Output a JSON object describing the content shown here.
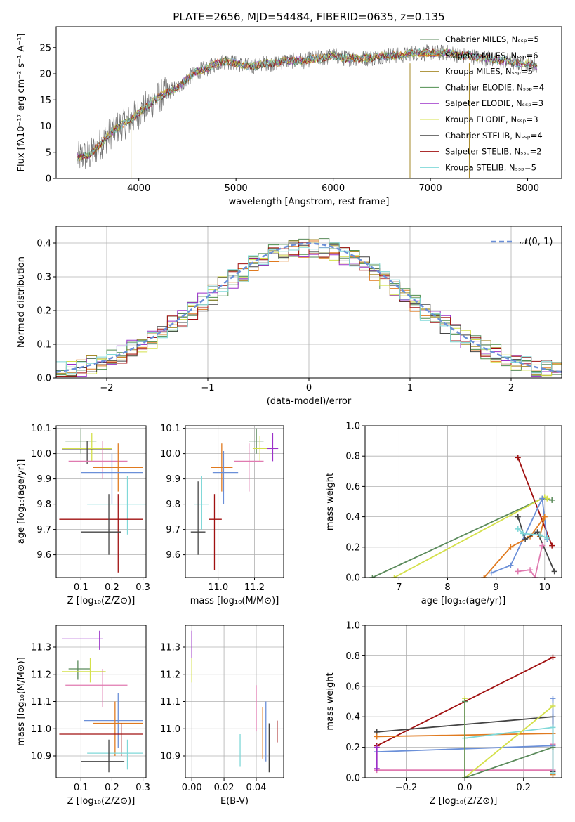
{
  "figure": {
    "title": "PLATE=2656, MJD=54484, FIBERID=0635, z=0.135"
  },
  "chart_data": [
    {
      "id": "spectrum",
      "type": "line",
      "xlabel": "wavelength [Angstrom, rest frame]",
      "ylabel": "Flux [fλ10⁻¹⁷ erg cm⁻² s⁻¹ A⁻¹]",
      "xlim": [
        3150,
        8350
      ],
      "ylim": [
        0,
        29
      ],
      "xticks": [
        4000,
        5000,
        6000,
        7000,
        8000
      ],
      "yticks": [
        0,
        5,
        10,
        15,
        20,
        25
      ],
      "grid": false,
      "legend": "upper right",
      "observed_flux": {
        "x": [
          3370,
          3500,
          3600,
          3700,
          3800,
          3900,
          4000,
          4100,
          4200,
          4300,
          4400,
          4500,
          4600,
          4700,
          4800,
          4900,
          5000,
          5100,
          5200,
          5300,
          5400,
          5500,
          5600,
          5700,
          5800,
          5900,
          6000,
          6100,
          6200,
          6300,
          6400,
          6500,
          6600,
          6700,
          6800,
          6900,
          7000,
          7100,
          7200,
          7300,
          7400,
          7500,
          7600,
          7700,
          7800,
          7900,
          8000,
          8100
        ],
        "y": [
          4.0,
          4.5,
          6.5,
          8.5,
          10.0,
          11.0,
          12.5,
          14.0,
          15.5,
          16.5,
          17.5,
          19.0,
          20.5,
          21.0,
          22.0,
          22.5,
          22.0,
          21.5,
          21.5,
          22.0,
          22.0,
          22.5,
          22.5,
          22.5,
          23.0,
          23.0,
          23.5,
          23.0,
          23.0,
          23.0,
          23.0,
          23.5,
          23.5,
          23.5,
          24.0,
          24.0,
          24.0,
          24.0,
          24.0,
          23.5,
          23.5,
          23.0,
          23.0,
          22.5,
          22.5,
          22.0,
          22.0,
          21.5
        ]
      },
      "series": [
        {
          "name": "Chabrier MILES, Nₛₛₚ=5",
          "color": "#5a8a5a"
        },
        {
          "name": "Salpeter MILES, Nₛₛₚ=6",
          "color": "#e07a1f"
        },
        {
          "name": "Kroupa MILES, Nₛₛₚ=5",
          "color": "#a68a2a"
        },
        {
          "name": "Chabrier ELODIE, Nₛₛₚ=4",
          "color": "#4f8f4f"
        },
        {
          "name": "Salpeter ELODIE, Nₛₛₚ=3",
          "color": "#9b30c9"
        },
        {
          "name": "Kroupa ELODIE, Nₛₛₚ=3",
          "color": "#d4e04a"
        },
        {
          "name": "Chabrier STELIB, Nₛₛₚ=4",
          "color": "#444444"
        },
        {
          "name": "Salpeter STELIB, Nₛₛₚ=2",
          "color": "#a01010"
        },
        {
          "name": "Kroupa STELIB, Nₛₛₚ=5",
          "color": "#7fd8d8"
        }
      ]
    },
    {
      "id": "residuals",
      "type": "step",
      "xlabel": "(data-model)/error",
      "ylabel": "Normed distribution",
      "xlim": [
        -2.5,
        2.5
      ],
      "ylim": [
        0,
        0.45
      ],
      "xticks": [
        -2,
        -1,
        0,
        1,
        2
      ],
      "yticks": [
        0.0,
        0.1,
        0.2,
        0.3,
        0.4
      ],
      "grid": true,
      "legend": "upper right",
      "reference_curve": {
        "name": "𝒩(0, 1)",
        "color": "#6a8fd8"
      },
      "bin_width": 0.1,
      "base_histogram": [
        0.03,
        0.033,
        0.037,
        0.04,
        0.05,
        0.06,
        0.07,
        0.08,
        0.095,
        0.11,
        0.12,
        0.135,
        0.15,
        0.165,
        0.18,
        0.2,
        0.215,
        0.235,
        0.255,
        0.27,
        0.285,
        0.3,
        0.31,
        0.32,
        0.335,
        0.345,
        0.35,
        0.355,
        0.36,
        0.36,
        0.362,
        0.36,
        0.356,
        0.35,
        0.345,
        0.335,
        0.325,
        0.31,
        0.295,
        0.28,
        0.265,
        0.25,
        0.23,
        0.215,
        0.2,
        0.18,
        0.165,
        0.15,
        0.135,
        0.12,
        0.11,
        0.095,
        0.085,
        0.075,
        0.065,
        0.055,
        0.05,
        0.042,
        0.037,
        0.033,
        0.03,
        0.028,
        0.026,
        0.024,
        0.022,
        0.02,
        0.02,
        0.02,
        0.02,
        0.02
      ],
      "hist_colors": [
        "#5a8a5a",
        "#e07a1f",
        "#a68a2a",
        "#4f8f4f",
        "#9b30c9",
        "#d4e04a",
        "#444444",
        "#a01010",
        "#7fd8d8"
      ]
    },
    {
      "id": "age_vs_Z",
      "type": "errorbar",
      "xlabel": "Z [log₁₀(Z/Z⊙)]",
      "ylabel": "age  [log₁₀(age/yr)]",
      "xlim": [
        0.02,
        0.31
      ],
      "ylim": [
        9.51,
        10.11
      ],
      "xticks": [
        0.1,
        0.2,
        0.3
      ],
      "yticks": [
        9.6,
        9.7,
        9.8,
        9.9,
        10.0,
        10.1
      ],
      "grid": true,
      "points": [
        {
          "x": 0.1,
          "xerr": [
            0.05,
            0.15
          ],
          "y": 10.05,
          "yerr": [
            10.0,
            10.1
          ],
          "color": "#5a8a5a"
        },
        {
          "x": 0.135,
          "xerr": [
            0.04,
            0.2
          ],
          "y": 10.02,
          "yerr": [
            9.97,
            10.08
          ],
          "color": "#d4e04a"
        },
        {
          "x": 0.12,
          "xerr": [
            0.04,
            0.2
          ],
          "y": 10.015,
          "yerr": [
            9.96,
            10.05
          ],
          "color": "#444444"
        },
        {
          "x": 0.17,
          "xerr": [
            0.06,
            0.25
          ],
          "y": 9.97,
          "yerr": [
            9.9,
            10.05
          ],
          "color": "#e07ab0"
        },
        {
          "x": 0.22,
          "xerr": [
            0.14,
            0.3
          ],
          "y": 9.945,
          "yerr": [
            9.85,
            10.04
          ],
          "color": "#e07a1f"
        },
        {
          "x": 0.2,
          "xerr": [
            0.1,
            0.3
          ],
          "y": 9.925,
          "yerr": [
            9.8,
            10.0
          ],
          "color": "#6a8fd8"
        },
        {
          "x": 0.25,
          "xerr": [
            0.12,
            0.31
          ],
          "y": 9.8,
          "yerr": [
            9.68,
            9.91
          ],
          "color": "#7fd8d8"
        },
        {
          "x": 0.22,
          "xerr": [
            0.03,
            0.3
          ],
          "y": 9.74,
          "yerr": [
            9.53,
            9.84
          ],
          "color": "#a01010"
        },
        {
          "x": 0.19,
          "xerr": [
            0.1,
            0.23
          ],
          "y": 9.69,
          "yerr": [
            9.6,
            9.84
          ],
          "color": "#444444"
        }
      ]
    },
    {
      "id": "age_vs_mass",
      "type": "errorbar",
      "xlabel": "mass [log₁₀(M/M⊙)]",
      "ylabel": "",
      "xlim": [
        10.82,
        11.36
      ],
      "ylim": [
        9.51,
        10.11
      ],
      "xticks": [
        11.0,
        11.2
      ],
      "yticks": [
        9.6,
        9.7,
        9.8,
        9.9,
        10.0,
        10.1
      ],
      "grid": true,
      "points": [
        {
          "x": 11.3,
          "xerr": [
            11.27,
            11.33
          ],
          "y": 10.02,
          "yerr": [
            9.97,
            10.08
          ],
          "color": "#9b30c9"
        },
        {
          "x": 11.21,
          "xerr": [
            11.17,
            11.25
          ],
          "y": 10.05,
          "yerr": [
            10.0,
            10.1
          ],
          "color": "#5a8a5a"
        },
        {
          "x": 11.23,
          "xerr": [
            11.19,
            11.27
          ],
          "y": 10.02,
          "yerr": [
            9.97,
            10.07
          ],
          "color": "#d4e04a"
        },
        {
          "x": 11.17,
          "xerr": [
            11.09,
            11.25
          ],
          "y": 9.97,
          "yerr": [
            9.85,
            10.04
          ],
          "color": "#e07ab0"
        },
        {
          "x": 11.02,
          "xerr": [
            10.96,
            11.08
          ],
          "y": 9.945,
          "yerr": [
            9.85,
            10.04
          ],
          "color": "#e07a1f"
        },
        {
          "x": 11.03,
          "xerr": [
            10.97,
            11.11
          ],
          "y": 9.925,
          "yerr": [
            9.8,
            10.01
          ],
          "color": "#6a8fd8"
        },
        {
          "x": 10.91,
          "xerr": [
            10.87,
            10.95
          ],
          "y": 9.8,
          "yerr": [
            9.7,
            9.91
          ],
          "color": "#7fd8d8"
        },
        {
          "x": 10.98,
          "xerr": [
            10.95,
            11.02
          ],
          "y": 9.74,
          "yerr": [
            9.54,
            9.84
          ],
          "color": "#a01010"
        },
        {
          "x": 10.89,
          "xerr": [
            10.85,
            10.93
          ],
          "y": 9.69,
          "yerr": [
            9.6,
            9.89
          ],
          "color": "#444444"
        }
      ]
    },
    {
      "id": "mass_weight_vs_age",
      "type": "line",
      "xlabel": "age  [log₁₀(age/yr)]",
      "ylabel": "mass weight",
      "xlim": [
        6.3,
        10.35
      ],
      "ylim": [
        0,
        1.0
      ],
      "xticks": [
        7,
        8,
        9,
        10
      ],
      "yticks": [
        0.0,
        0.2,
        0.4,
        0.6,
        0.8,
        1.0
      ],
      "grid": true,
      "series": [
        {
          "color": "#a01010",
          "x": [
            9.45,
            10.15
          ],
          "y": [
            0.79,
            0.21
          ]
        },
        {
          "color": "#5a8a5a",
          "x": [
            6.45,
            9.95,
            10.15
          ],
          "y": [
            0.0,
            0.52,
            0.51
          ]
        },
        {
          "color": "#d4e04a",
          "x": [
            6.9,
            10.0,
            10.05
          ],
          "y": [
            0.0,
            0.53,
            0.52
          ]
        },
        {
          "color": "#6a8fd8",
          "x": [
            8.9,
            9.3,
            9.95,
            10.05
          ],
          "y": [
            0.03,
            0.08,
            0.52,
            0.25
          ]
        },
        {
          "color": "#e07a1f",
          "x": [
            8.75,
            9.3,
            9.7,
            10.0,
            9.9
          ],
          "y": [
            0.0,
            0.2,
            0.27,
            0.4,
            0.27
          ]
        },
        {
          "color": "#444444",
          "x": [
            9.45,
            9.6,
            9.85,
            10.2
          ],
          "y": [
            0.4,
            0.25,
            0.3,
            0.04
          ]
        },
        {
          "color": "#7fd8d8",
          "x": [
            9.45,
            9.55,
            9.9,
            10.05
          ],
          "y": [
            0.32,
            0.29,
            0.28,
            0.26
          ]
        },
        {
          "color": "#e07ab0",
          "x": [
            9.45,
            9.7,
            9.8,
            9.95
          ],
          "y": [
            0.04,
            0.05,
            0.0,
            0.21
          ]
        }
      ]
    },
    {
      "id": "mass_vs_Z",
      "type": "errorbar",
      "xlabel": "Z [log₁₀(Z/Z⊙)]",
      "ylabel": "mass [log₁₀(M/M⊙)]",
      "xlim": [
        0.02,
        0.31
      ],
      "ylim": [
        10.82,
        11.38
      ],
      "xticks": [
        0.1,
        0.2,
        0.3
      ],
      "yticks": [
        10.9,
        11.0,
        11.1,
        11.2,
        11.3
      ],
      "grid": true,
      "points": [
        {
          "x": 0.16,
          "xerr": [
            0.04,
            0.17
          ],
          "y": 11.33,
          "yerr": [
            11.29,
            11.36
          ],
          "color": "#9b30c9"
        },
        {
          "x": 0.09,
          "xerr": [
            0.06,
            0.13
          ],
          "y": 11.22,
          "yerr": [
            11.18,
            11.25
          ],
          "color": "#5a8a5a"
        },
        {
          "x": 0.13,
          "xerr": [
            0.04,
            0.18
          ],
          "y": 11.21,
          "yerr": [
            11.17,
            11.26
          ],
          "color": "#d4e04a"
        },
        {
          "x": 0.17,
          "xerr": [
            0.05,
            0.25
          ],
          "y": 11.16,
          "yerr": [
            11.08,
            11.22
          ],
          "color": "#e07ab0"
        },
        {
          "x": 0.22,
          "xerr": [
            0.11,
            0.3
          ],
          "y": 11.03,
          "yerr": [
            10.93,
            11.13
          ],
          "color": "#6a8fd8"
        },
        {
          "x": 0.21,
          "xerr": [
            0.14,
            0.3
          ],
          "y": 11.02,
          "yerr": [
            10.9,
            11.1
          ],
          "color": "#e07a1f"
        },
        {
          "x": 0.23,
          "xerr": [
            0.03,
            0.3
          ],
          "y": 10.98,
          "yerr": [
            10.9,
            11.02
          ],
          "color": "#a01010"
        },
        {
          "x": 0.25,
          "xerr": [
            0.12,
            0.3
          ],
          "y": 10.91,
          "yerr": [
            10.85,
            10.96
          ],
          "color": "#7fd8d8"
        },
        {
          "x": 0.19,
          "xerr": [
            0.1,
            0.24
          ],
          "y": 10.88,
          "yerr": [
            10.84,
            10.96
          ],
          "color": "#444444"
        }
      ]
    },
    {
      "id": "mass_vs_EBV",
      "type": "errorbar",
      "xlabel": "E(B-V)",
      "ylabel": "",
      "xlim": [
        -0.004,
        0.057
      ],
      "ylim": [
        10.82,
        11.38
      ],
      "xticks": [
        0.0,
        0.02,
        0.04
      ],
      "yticks": [
        10.9,
        11.0,
        11.1,
        11.2,
        11.3
      ],
      "grid": true,
      "points": [
        {
          "x": 0.0,
          "y": 11.3,
          "yerr": [
            11.26,
            11.36
          ],
          "color": "#9b30c9"
        },
        {
          "x": 0.0,
          "y": 11.21,
          "yerr": [
            11.17,
            11.26
          ],
          "color": "#d4e04a"
        },
        {
          "x": 0.03,
          "y": 10.92,
          "yerr": [
            10.86,
            10.98
          ],
          "color": "#7fd8d8"
        },
        {
          "x": 0.04,
          "y": 11.08,
          "yerr": [
            10.99,
            11.16
          ],
          "color": "#e07ab0"
        },
        {
          "x": 0.044,
          "y": 10.99,
          "yerr": [
            10.89,
            11.08
          ],
          "color": "#e07a1f"
        },
        {
          "x": 0.046,
          "y": 10.98,
          "yerr": [
            10.88,
            11.1
          ],
          "color": "#6a8fd8"
        },
        {
          "x": 0.048,
          "y": 10.93,
          "yerr": [
            10.84,
            11.02
          ],
          "color": "#444444"
        },
        {
          "x": 0.053,
          "y": 10.99,
          "yerr": [
            10.95,
            11.03
          ],
          "color": "#a01010"
        }
      ]
    },
    {
      "id": "mass_weight_vs_Z",
      "type": "line",
      "xlabel": "Z [log₁₀(Z/Z⊙)]",
      "ylabel": "mass weight",
      "xlim": [
        -0.34,
        0.33
      ],
      "ylim": [
        0,
        1.0
      ],
      "xticks": [
        -0.2,
        0.0,
        0.2
      ],
      "yticks": [
        0.0,
        0.2,
        0.4,
        0.6,
        0.8,
        1.0
      ],
      "grid": true,
      "series": [
        {
          "color": "#a01010",
          "x": [
            -0.3,
            0.3
          ],
          "y": [
            0.21,
            0.79
          ]
        },
        {
          "color": "#444444",
          "x": [
            -0.3,
            0.3,
            0.3
          ],
          "y": [
            0.3,
            0.4,
            0.04
          ]
        },
        {
          "color": "#e07a1f",
          "x": [
            -0.3,
            0.3,
            0.3
          ],
          "y": [
            0.27,
            0.29,
            0.02
          ]
        },
        {
          "color": "#6a8fd8",
          "x": [
            -0.3,
            0.3,
            0.3
          ],
          "y": [
            0.17,
            0.21,
            0.52
          ]
        },
        {
          "color": "#e07ab0",
          "x": [
            -0.3,
            -0.3,
            0.3,
            0.3
          ],
          "y": [
            0.2,
            0.05,
            0.05,
            0.22
          ]
        },
        {
          "color": "#7fd8d8",
          "x": [
            0.0,
            0.3,
            0.3
          ],
          "y": [
            0.26,
            0.33,
            0.03
          ]
        },
        {
          "color": "#d4e04a",
          "x": [
            0.0,
            0.0,
            0.3
          ],
          "y": [
            0.52,
            0.0,
            0.47
          ]
        },
        {
          "color": "#5a8a5a",
          "x": [
            0.0,
            0.0,
            0.3
          ],
          "y": [
            0.5,
            0.0,
            0.2
          ]
        },
        {
          "color": "#9b30c9",
          "x": [
            -0.3,
            -0.3
          ],
          "y": [
            0.2,
            0.06
          ]
        }
      ]
    }
  ]
}
